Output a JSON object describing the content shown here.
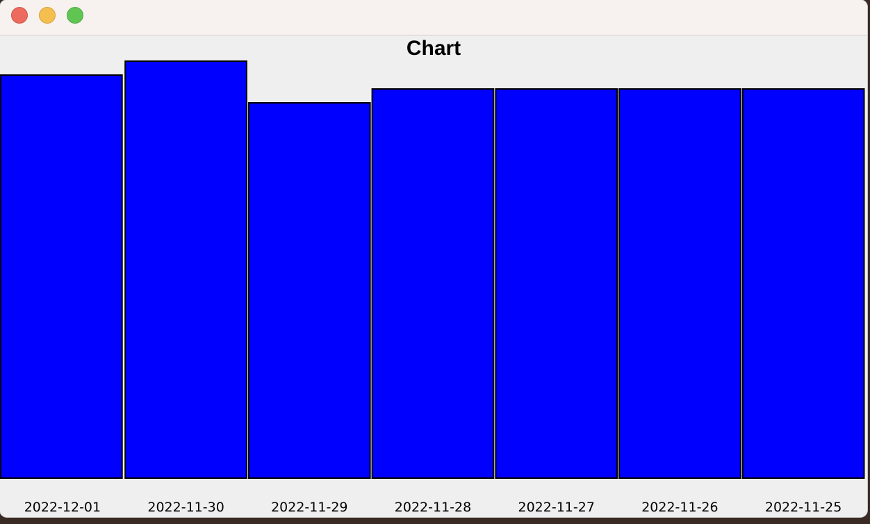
{
  "window": {
    "controls": [
      "close",
      "minimize",
      "zoom"
    ],
    "colors": {
      "close": "#ec6a5e",
      "minimize": "#f5bf4f",
      "zoom": "#61c554"
    }
  },
  "chart_data": {
    "type": "bar",
    "title": "Chart",
    "categories": [
      "2022-12-01",
      "2022-11-30",
      "2022-11-29",
      "2022-11-28",
      "2022-11-27",
      "2022-11-26",
      "2022-11-25"
    ],
    "values": [
      29,
      30,
      27,
      28,
      28,
      28,
      28
    ],
    "ylim": [
      0,
      30
    ],
    "bar_color": "#0000ff",
    "grid": false
  }
}
